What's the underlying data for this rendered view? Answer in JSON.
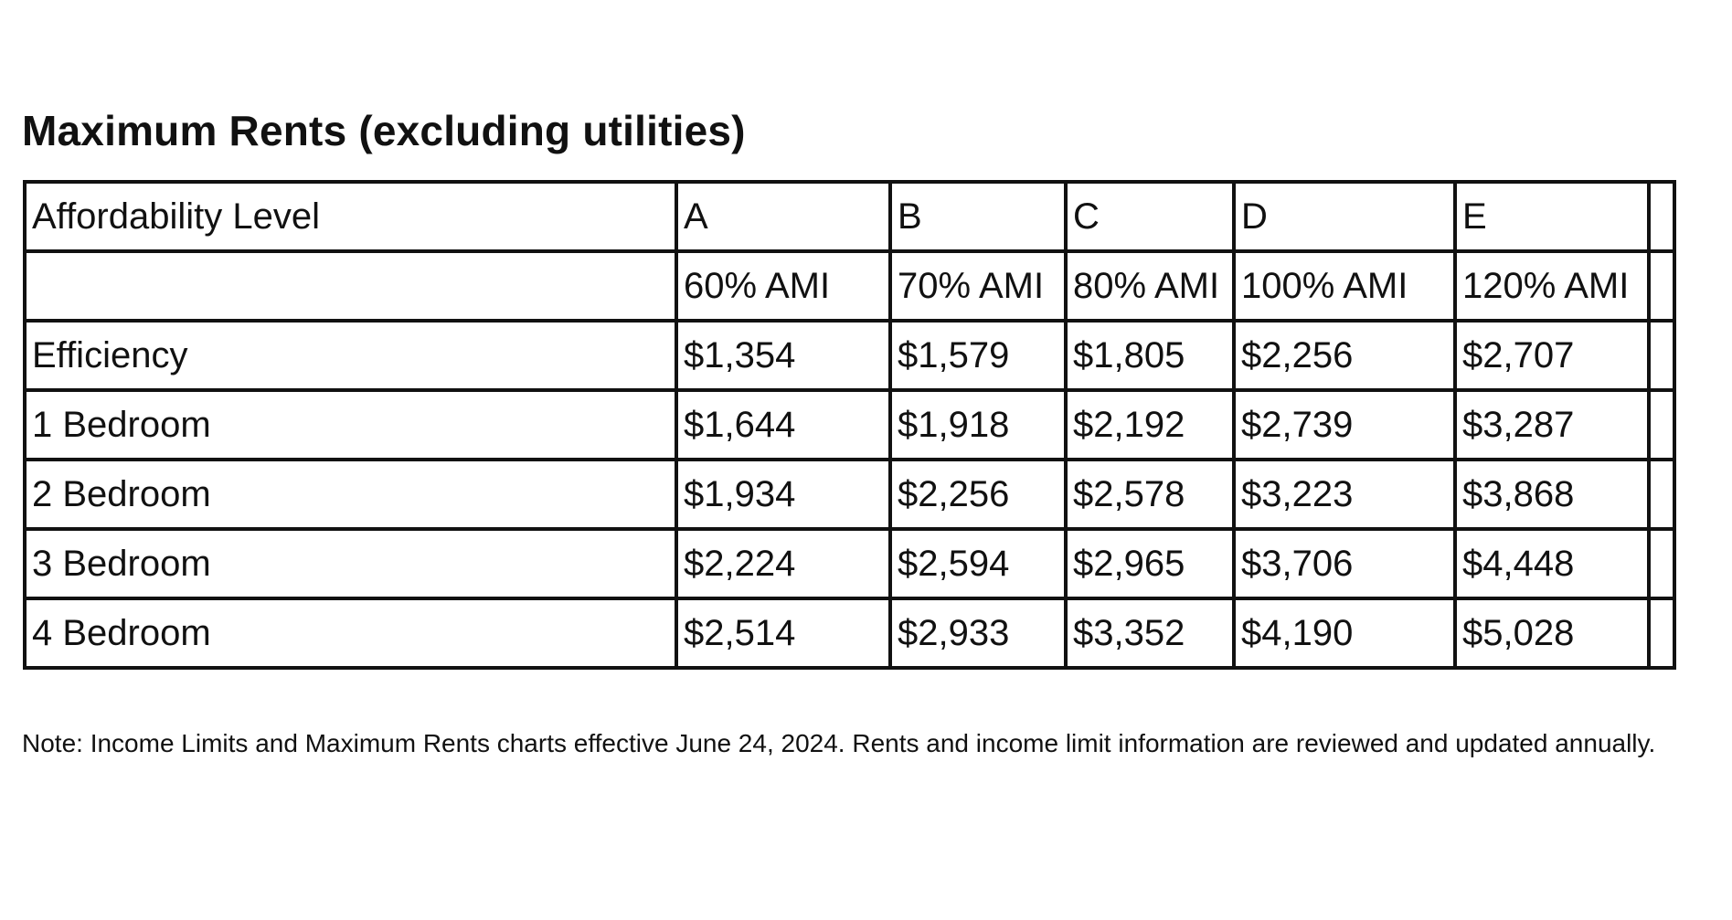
{
  "title": "Maximum Rents (excluding utilities)",
  "table": {
    "header": {
      "label": "Affordability Level",
      "levels": [
        "A",
        "B",
        "C",
        "D",
        "E"
      ]
    },
    "ami_row": {
      "label": "",
      "values": [
        "60% AMI",
        "70% AMI",
        "80% AMI",
        "100% AMI",
        "120% AMI"
      ]
    },
    "rows": [
      {
        "label": "Efficiency",
        "values": [
          "$1,354",
          "$1,579",
          "$1,805",
          "$2,256",
          "$2,707"
        ]
      },
      {
        "label": "1 Bedroom",
        "values": [
          "$1,644",
          "$1,918",
          "$2,192",
          "$2,739",
          "$3,287"
        ]
      },
      {
        "label": "2 Bedroom",
        "values": [
          "$1,934",
          "$2,256",
          "$2,578",
          "$3,223",
          "$3,868"
        ]
      },
      {
        "label": "3 Bedroom",
        "values": [
          "$2,224",
          "$2,594",
          "$2,965",
          "$3,706",
          "$4,448"
        ]
      },
      {
        "label": "4 Bedroom",
        "values": [
          "$2,514",
          "$2,933",
          "$3,352",
          "$4,190",
          "$5,028"
        ]
      }
    ]
  },
  "note": "Note: Income Limits and Maximum Rents charts effective June 24, 2024. Rents and income limit information are reviewed and updated annually."
}
